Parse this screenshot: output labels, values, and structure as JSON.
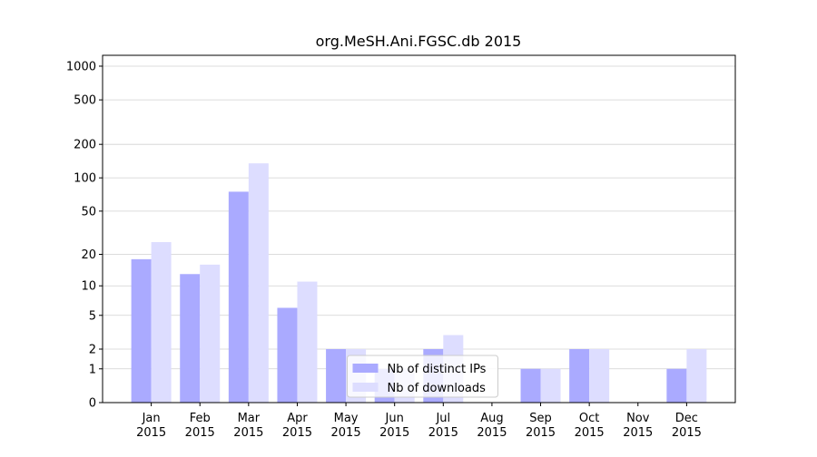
{
  "chart_data": {
    "type": "bar",
    "title": "org.MeSH.Ani.FGSC.db 2015",
    "categories": [
      "Jan\n2015",
      "Feb\n2015",
      "Mar\n2015",
      "Apr\n2015",
      "May\n2015",
      "Jun\n2015",
      "Jul\n2015",
      "Aug\n2015",
      "Sep\n2015",
      "Oct\n2015",
      "Nov\n2015",
      "Dec\n2015"
    ],
    "series": [
      {
        "name": "Nb of distinct IPs",
        "color": "#aaaaff",
        "values": [
          18,
          13,
          75,
          6,
          2,
          1,
          2,
          0,
          1,
          2,
          0,
          1
        ]
      },
      {
        "name": "Nb of downloads",
        "color": "#ddddff",
        "values": [
          26,
          16,
          135,
          11,
          2,
          1,
          3,
          0,
          1,
          2,
          0,
          2
        ]
      }
    ],
    "yscale": "symlog",
    "ylim": [
      0,
      1250
    ],
    "yticks": [
      0,
      1,
      2,
      5,
      10,
      20,
      50,
      100,
      200,
      500,
      1000
    ],
    "grid": true,
    "legend": "lower center"
  }
}
